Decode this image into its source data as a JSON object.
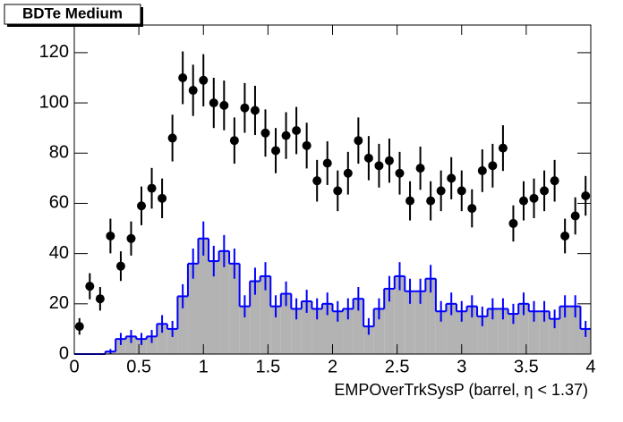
{
  "chart_data": {
    "type": "histogram",
    "title": "BDTe Medium",
    "x_label": "EMPOverTrkSysP (barrel,   η < 1.37)",
    "bins": [
      0,
      0.08,
      0.16,
      0.24,
      0.32,
      0.4,
      0.48,
      0.56,
      0.64,
      0.72,
      0.8,
      0.88,
      0.96,
      1.04,
      1.12,
      1.2,
      1.28,
      1.36,
      1.44,
      1.52,
      1.6,
      1.68,
      1.76,
      1.84,
      1.92,
      2,
      2.08,
      2.16,
      2.24,
      2.32,
      2.4,
      2.48,
      2.56,
      2.64,
      2.72,
      2.8,
      2.88,
      2.96,
      3.04,
      3.12,
      3.2,
      3.28,
      3.36,
      3.44,
      3.52,
      3.6,
      3.68,
      3.76,
      3.84,
      3.92,
      4
    ],
    "histogram": {
      "color": "#0000ff",
      "fill": "#b3b3b3",
      "values": [
        0,
        0,
        0,
        1,
        6,
        7,
        6,
        7,
        12,
        10,
        23,
        36,
        46,
        37,
        41,
        36,
        19,
        29,
        31,
        19,
        24,
        18,
        21,
        18,
        20,
        17,
        18,
        22,
        11,
        18,
        26,
        31,
        25,
        25,
        30,
        17,
        20,
        17,
        19,
        15,
        18,
        18,
        16,
        20,
        17,
        17,
        14,
        19,
        19,
        10
      ],
      "errors": [
        0,
        0,
        0,
        1,
        2.4,
        2.6,
        2.4,
        2.6,
        3.5,
        3.2,
        4.8,
        6,
        6.8,
        6.1,
        6.4,
        6,
        4.4,
        5.4,
        5.6,
        4.4,
        4.9,
        4.2,
        4.6,
        4.2,
        4.5,
        4.1,
        4.2,
        4.7,
        3.3,
        4.2,
        5.1,
        5.6,
        5,
        5,
        5.5,
        4.1,
        4.5,
        4.1,
        4.4,
        3.9,
        4.2,
        4.2,
        4,
        4.5,
        4.1,
        4.1,
        3.7,
        4.4,
        4.4,
        3.2
      ]
    },
    "points": {
      "color": "#000000",
      "values": [
        11,
        27,
        22,
        47,
        35,
        46,
        59,
        66,
        62,
        86,
        110,
        105,
        109,
        100,
        99,
        85,
        98,
        97,
        88,
        81,
        87,
        89,
        83,
        69,
        76,
        65,
        72,
        85,
        78,
        75,
        77,
        72,
        61,
        74,
        61,
        65,
        70,
        65,
        58,
        73,
        75,
        82,
        52,
        61,
        62,
        65,
        69,
        47,
        55,
        63
      ],
      "errors": [
        3.3,
        5.2,
        4.7,
        6.9,
        5.9,
        6.8,
        7.7,
        8.1,
        7.9,
        9.3,
        10.5,
        10.2,
        10.4,
        10,
        9.9,
        9.2,
        9.9,
        9.8,
        9.4,
        9,
        9.3,
        9.4,
        9.1,
        8.3,
        8.7,
        8.1,
        8.5,
        9.2,
        8.8,
        8.7,
        8.8,
        8.5,
        7.8,
        8.6,
        7.8,
        8.1,
        8.4,
        8.1,
        7.6,
        8.5,
        8.7,
        9.1,
        7.2,
        7.8,
        7.9,
        8.1,
        8.3,
        6.9,
        7.4,
        7.9
      ]
    },
    "xlim": [
      0,
      4
    ],
    "xticks": [
      0,
      0.5,
      1,
      1.5,
      2,
      2.5,
      3,
      3.5,
      4
    ],
    "ylim": [
      0,
      131
    ],
    "yticks": [
      0,
      20,
      40,
      60,
      80,
      100,
      120
    ]
  }
}
